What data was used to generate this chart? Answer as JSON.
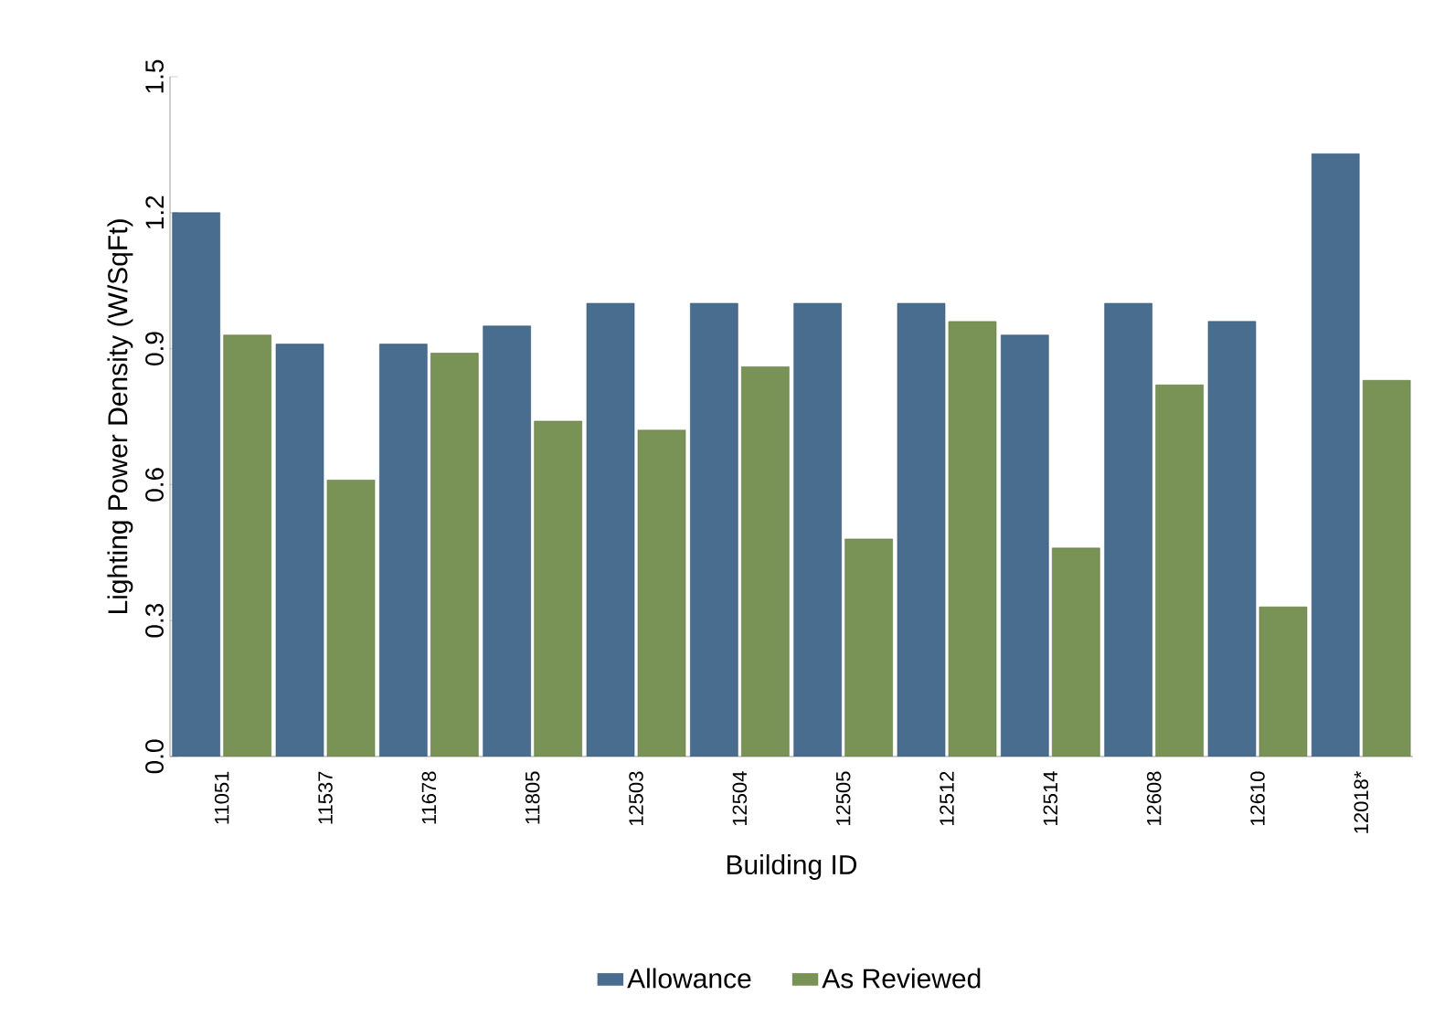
{
  "chart_data": {
    "type": "bar",
    "xlabel": "Building ID",
    "ylabel": "Lighting Power Density (W/SqFt)",
    "categories": [
      "11051",
      "11537",
      "11678",
      "11805",
      "12503",
      "12504",
      "12505",
      "12512",
      "12514",
      "12608",
      "12610",
      "12018*"
    ],
    "series": [
      {
        "name": "Allowance",
        "color": "#486d8f",
        "values": [
          1.2,
          0.91,
          0.91,
          0.95,
          1.0,
          1.0,
          1.0,
          1.0,
          0.93,
          1.0,
          0.96,
          1.33
        ]
      },
      {
        "name": "As Reviewed",
        "color": "#799255",
        "values": [
          0.93,
          0.61,
          0.89,
          0.74,
          0.72,
          0.86,
          0.48,
          0.96,
          0.46,
          0.82,
          0.33,
          0.83
        ]
      }
    ],
    "ylim": [
      0,
      1.5
    ],
    "yticks": [
      {
        "value": 0,
        "label": "0.0"
      },
      {
        "value": 0.3,
        "label": "0.3"
      },
      {
        "value": 0.6,
        "label": "0.6"
      },
      {
        "value": 0.9,
        "label": "0.9"
      },
      {
        "value": 1.2,
        "label": "1.2"
      },
      {
        "value": 1.5,
        "label": "1.5"
      }
    ],
    "legend": "bottom",
    "grid": false
  }
}
